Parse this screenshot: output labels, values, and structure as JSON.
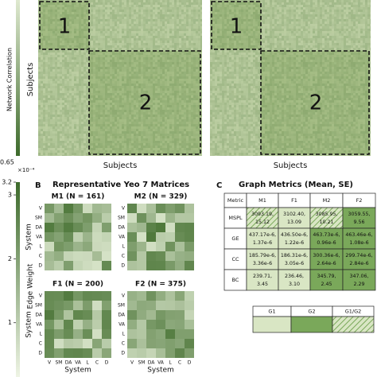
{
  "colorbars": {
    "network": {
      "label": "Network Correlation",
      "min_label": "0.65"
    },
    "edge": {
      "label": "Edge Weight",
      "multiplier": "×10⁻⁴",
      "lim": [
        0.15,
        3.2
      ],
      "ticks": [
        1,
        2,
        3,
        3.2
      ]
    }
  },
  "panel_a": {
    "ylabel": "Subjects",
    "xlabel": "Subjects",
    "matrices": [
      {
        "blocks": [
          "1",
          "2"
        ]
      },
      {
        "blocks": [
          "1",
          "2"
        ]
      }
    ]
  },
  "panel_b": {
    "letter": "B",
    "title": "Representative Yeo 7 Matrices",
    "axis_label": "System",
    "systems": [
      "V",
      "SM",
      "DA",
      "VA",
      "L",
      "C",
      "D"
    ],
    "matrices": [
      {
        "title": "M1 (N = 161)"
      },
      {
        "title": "M2 (N = 329)"
      },
      {
        "title": "F1 (N = 200)"
      },
      {
        "title": "F2 (N = 375)"
      }
    ]
  },
  "panel_c": {
    "letter": "C",
    "title": "Graph Metrics (Mean, SE)",
    "columns": [
      "Metric",
      "M1",
      "F1",
      "M2",
      "F2"
    ],
    "rows": [
      {
        "metric": "MSPL",
        "cells": [
          [
            "3093.19,",
            "15.12"
          ],
          [
            "3102.40,",
            "13.09"
          ],
          [
            "3085.95,",
            "10.21"
          ],
          [
            "3059.55,",
            "9.56"
          ]
        ],
        "groups": [
          "G1/G2",
          "G1",
          "G1/G2",
          "G2"
        ]
      },
      {
        "metric": "GE",
        "cells": [
          [
            "437.17e-6,",
            "1.37e-6"
          ],
          [
            "436.50e-6,",
            "1.22e-6"
          ],
          [
            "463.73e-6,",
            "0.96e-6"
          ],
          [
            "463.46e-6,",
            "1.08e-6"
          ]
        ],
        "groups": [
          "G1",
          "G1",
          "G2",
          "G2"
        ]
      },
      {
        "metric": "CC",
        "cells": [
          [
            "185.79e-6,",
            "3.36e-6"
          ],
          [
            "186.31e-6,",
            "3.05e-6"
          ],
          [
            "300.36e-6,",
            "2.64e-6"
          ],
          [
            "299.74e-6,",
            "2.84e-6"
          ]
        ],
        "groups": [
          "G1",
          "G1",
          "G2",
          "G2"
        ]
      },
      {
        "metric": "BC",
        "cells": [
          [
            "239.71,",
            "3.45"
          ],
          [
            "236.46,",
            "3.10"
          ],
          [
            "345.79,",
            "2.45"
          ],
          [
            "347.06,",
            "2.29"
          ]
        ],
        "groups": [
          "G1",
          "G1",
          "G2",
          "G2"
        ]
      }
    ],
    "legend": [
      "G1",
      "G2",
      "G1/G2"
    ]
  }
}
